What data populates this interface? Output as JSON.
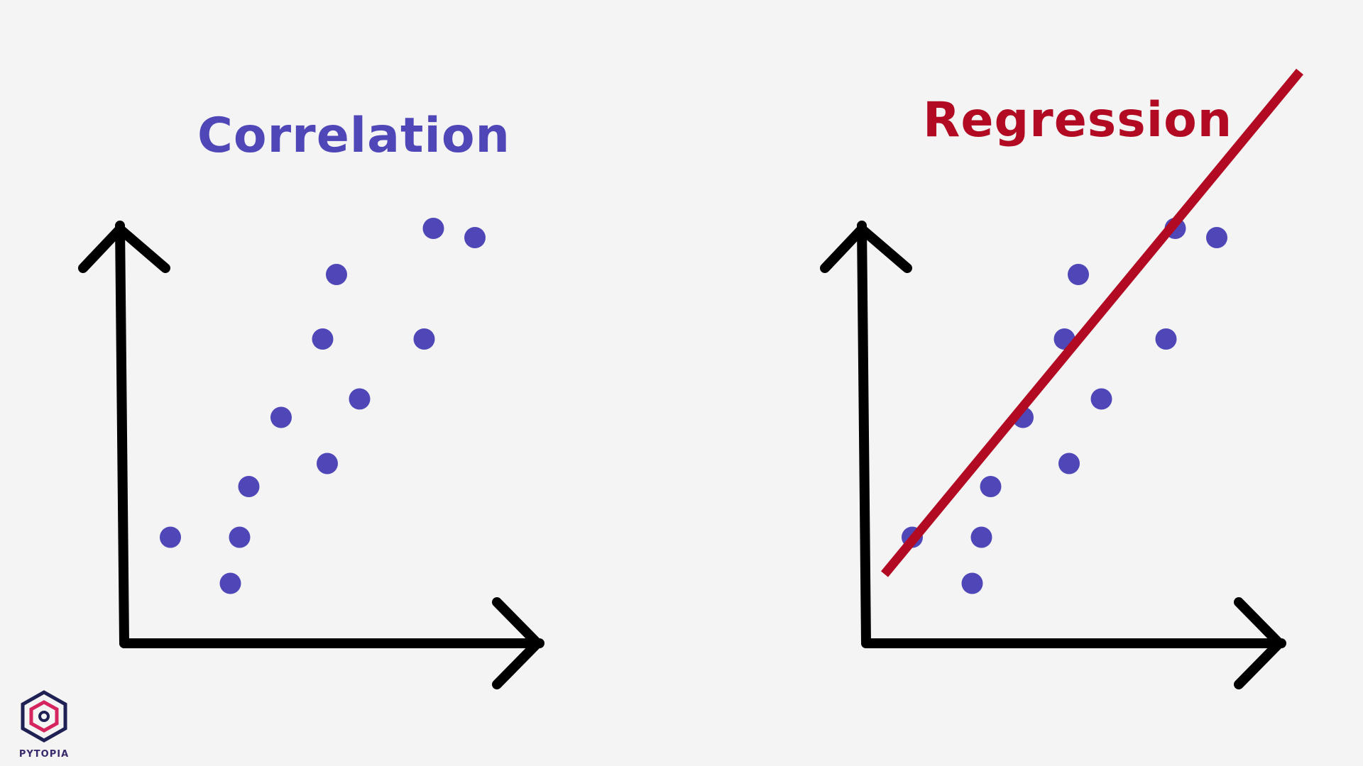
{
  "panels": [
    {
      "title": "Correlation",
      "title_color": "#4f46b8",
      "dot_color": "#4f46b8",
      "has_line": false
    },
    {
      "title": "Regression",
      "title_color": "#b10a22",
      "dot_color": "#4f46b8",
      "has_line": true,
      "line_color": "#b10a22"
    }
  ],
  "chart_data": {
    "type": "scatter",
    "x": [
      1.0,
      2.3,
      2.5,
      2.7,
      3.4,
      4.4,
      4.3,
      4.6,
      5.1,
      6.5,
      6.7,
      7.6
    ],
    "y": [
      2.3,
      1.3,
      2.3,
      3.4,
      4.9,
      3.9,
      6.6,
      8.0,
      5.3,
      6.6,
      9.0,
      8.8
    ],
    "xlim": [
      0,
      10
    ],
    "ylim": [
      0,
      10
    ],
    "axis_color": "#000000"
  },
  "logo": {
    "text": "PYTOPIA",
    "text_color": "#3b2a6b",
    "outer_color": "#1f2154",
    "accent_color": "#d6245e"
  }
}
